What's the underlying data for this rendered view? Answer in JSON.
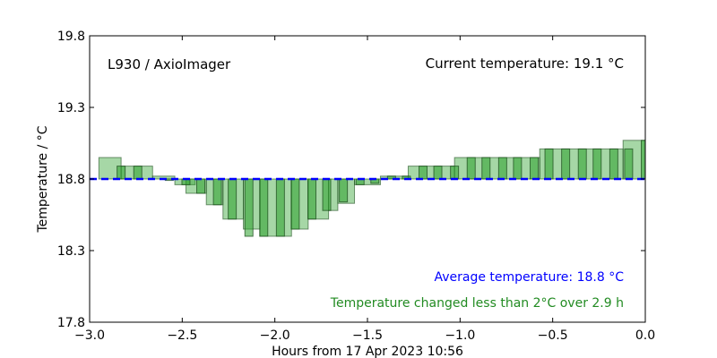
{
  "chart_data": {
    "type": "bar",
    "title": "",
    "xlabel": "Hours from 17 Apr 2023 10:56",
    "ylabel": "Temperature / °C",
    "xlim": [
      -3.0,
      0.0
    ],
    "ylim": [
      17.8,
      19.8
    ],
    "xticks": [
      "−3.0",
      "−2.5",
      "−2.0",
      "−1.5",
      "−1.0",
      "−0.5",
      "0.0"
    ],
    "xtick_values": [
      -3.0,
      -2.5,
      -2.0,
      -1.5,
      -1.0,
      -0.5,
      0.0
    ],
    "yticks": [
      "17.8",
      "18.3",
      "18.8",
      "19.3",
      "19.8"
    ],
    "ytick_values": [
      17.8,
      18.3,
      18.8,
      19.3,
      19.8
    ],
    "baseline": 18.8,
    "average": 18.8,
    "colors": {
      "bar_fill": "#2ca02c",
      "bar_edge": "#1f4f1f",
      "average_line": "#0000ff",
      "average_text": "#0000ff",
      "change_text": "#228b22"
    },
    "wide_bars": [
      {
        "start": -2.95,
        "end": -2.83,
        "value": 18.95
      },
      {
        "start": -2.83,
        "end": -2.66,
        "value": 18.89
      },
      {
        "start": -2.66,
        "end": -2.54,
        "value": 18.82
      },
      {
        "start": -2.54,
        "end": -2.43,
        "value": 18.76
      },
      {
        "start": -2.48,
        "end": -2.37,
        "value": 18.7
      },
      {
        "start": -2.37,
        "end": -2.28,
        "value": 18.62
      },
      {
        "start": -2.28,
        "end": -2.17,
        "value": 18.52
      },
      {
        "start": -2.17,
        "end": -2.08,
        "value": 18.45
      },
      {
        "start": -2.08,
        "end": -1.91,
        "value": 18.4
      },
      {
        "start": -1.91,
        "end": -1.82,
        "value": 18.45
      },
      {
        "start": -1.82,
        "end": -1.71,
        "value": 18.52
      },
      {
        "start": -1.71,
        "end": -1.66,
        "value": 18.58
      },
      {
        "start": -1.66,
        "end": -1.57,
        "value": 18.63
      },
      {
        "start": -1.57,
        "end": -1.43,
        "value": 18.76
      },
      {
        "start": -1.43,
        "end": -1.28,
        "value": 18.82
      },
      {
        "start": -1.28,
        "end": -1.03,
        "value": 18.89
      },
      {
        "start": -1.03,
        "end": -0.57,
        "value": 18.95
      },
      {
        "start": -0.57,
        "end": -0.12,
        "value": 19.01
      },
      {
        "start": -0.12,
        "end": 0.0,
        "value": 19.07
      }
    ],
    "narrow_bars": [
      {
        "x": -2.83,
        "value": 18.89
      },
      {
        "x": -2.74,
        "value": 18.89
      },
      {
        "x": -2.57,
        "value": 18.79
      },
      {
        "x": -2.48,
        "value": 18.76
      },
      {
        "x": -2.4,
        "value": 18.7
      },
      {
        "x": -2.31,
        "value": 18.62
      },
      {
        "x": -2.23,
        "value": 18.52
      },
      {
        "x": -2.14,
        "value": 18.4
      },
      {
        "x": -2.06,
        "value": 18.4
      },
      {
        "x": -1.97,
        "value": 18.4
      },
      {
        "x": -1.89,
        "value": 18.45
      },
      {
        "x": -1.8,
        "value": 18.52
      },
      {
        "x": -1.72,
        "value": 18.58
      },
      {
        "x": -1.63,
        "value": 18.64
      },
      {
        "x": -1.54,
        "value": 18.76
      },
      {
        "x": -1.46,
        "value": 18.77
      },
      {
        "x": -1.37,
        "value": 18.82
      },
      {
        "x": -1.29,
        "value": 18.82
      },
      {
        "x": -1.2,
        "value": 18.89
      },
      {
        "x": -1.12,
        "value": 18.89
      },
      {
        "x": -1.03,
        "value": 18.89
      },
      {
        "x": -0.94,
        "value": 18.95
      },
      {
        "x": -0.86,
        "value": 18.95
      },
      {
        "x": -0.77,
        "value": 18.95
      },
      {
        "x": -0.69,
        "value": 18.95
      },
      {
        "x": -0.6,
        "value": 18.95
      },
      {
        "x": -0.52,
        "value": 19.01
      },
      {
        "x": -0.43,
        "value": 19.01
      },
      {
        "x": -0.34,
        "value": 19.01
      },
      {
        "x": -0.26,
        "value": 19.01
      },
      {
        "x": -0.17,
        "value": 19.01
      },
      {
        "x": -0.09,
        "value": 19.01
      },
      {
        "x": -0.0,
        "value": 19.07
      }
    ],
    "annotations": {
      "instrument": "L930 / AxioImager",
      "current": "Current temperature: 19.1 °C",
      "average": "Average temperature: 18.8 °C",
      "change": "Temperature changed less than 2°C over 2.9 h"
    }
  }
}
